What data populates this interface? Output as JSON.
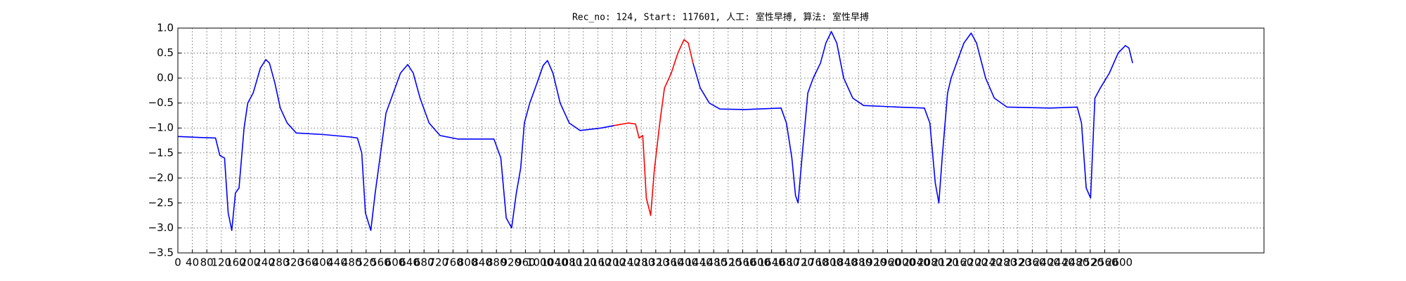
{
  "chart_data": {
    "type": "line",
    "title": "Rec_no: 124, Start: 117601, 人工: 室性早搏, 算法: 室性早搏",
    "xlim": [
      0,
      3000
    ],
    "xticks": [
      0,
      40,
      80,
      120,
      160,
      200,
      240,
      280,
      320,
      360,
      400,
      440,
      480,
      520,
      560,
      600,
      640,
      680,
      720,
      760,
      800,
      840,
      880,
      920,
      960,
      1000,
      1040,
      1080,
      1120,
      1160,
      1200,
      1240,
      1280,
      1320,
      1360,
      1400,
      1440,
      1480,
      1520,
      1560,
      1600,
      1640,
      1680,
      1720,
      1760,
      1800,
      1840,
      1880,
      1920,
      1960,
      2000,
      2040,
      2080,
      2120,
      2160,
      2200,
      2240,
      2280,
      2320,
      2360,
      2400,
      2440,
      2480,
      2520,
      2560,
      2600
    ],
    "ylim": [
      -3.5,
      1.0
    ],
    "yticks": [
      {
        "value": 1.0,
        "label": "1.0"
      },
      {
        "value": 0.5,
        "label": "0.5"
      },
      {
        "value": 0.0,
        "label": "0.0"
      },
      {
        "value": -0.5,
        "label": "−0.5"
      },
      {
        "value": -1.0,
        "label": "−1.0"
      },
      {
        "value": -1.5,
        "label": "−1.5"
      },
      {
        "value": -2.0,
        "label": "−2.0"
      },
      {
        "value": -2.5,
        "label": "−2.5"
      },
      {
        "value": -3.0,
        "label": "−3.0"
      },
      {
        "value": -3.5,
        "label": "−3.5"
      }
    ],
    "grid": true,
    "series": [
      {
        "color": "#0000ff",
        "x": [
          0,
          60,
          104,
          116,
          129,
          139,
          149,
          159,
          169,
          183,
          193,
          208,
          228,
          243,
          253,
          268,
          283,
          302,
          327,
          402,
          476,
          496,
          508,
          518,
          533,
          545,
          560,
          575,
          590,
          615,
          635,
          650,
          669,
          694,
          724,
          773,
          873,
          892,
          907,
          922,
          935,
          947,
          957,
          972,
          992,
          1009,
          1021,
          1036,
          1056,
          1081,
          1111,
          1170,
          1205,
          1300,
          1423,
          1443,
          1468,
          1497,
          1566,
          1666,
          1681,
          1696,
          1706,
          1713,
          1725,
          1740,
          1755,
          1775,
          1790,
          1805,
          1820,
          1839,
          1864,
          1894,
          1988,
          2062,
          2077,
          2092,
          2102,
          2111,
          2126,
          2136,
          2156,
          2171,
          2191,
          2206,
          2231,
          2255,
          2290,
          2409,
          2484,
          2496,
          2509,
          2521,
          2533,
          2548,
          2573,
          2597,
          2617,
          2627,
          2637
        ],
        "values": [
          -1.17,
          -1.19,
          -1.2,
          -1.55,
          -1.6,
          -2.7,
          -3.05,
          -2.3,
          -2.2,
          -1.0,
          -0.5,
          -0.3,
          0.2,
          0.37,
          0.3,
          -0.1,
          -0.6,
          -0.9,
          -1.1,
          -1.13,
          -1.18,
          -1.2,
          -1.5,
          -2.7,
          -3.05,
          -2.3,
          -1.5,
          -0.7,
          -0.4,
          0.1,
          0.27,
          0.1,
          -0.4,
          -0.9,
          -1.15,
          -1.22,
          -1.22,
          -1.6,
          -2.8,
          -3.0,
          -2.3,
          -1.8,
          -0.9,
          -0.5,
          -0.1,
          0.25,
          0.35,
          0.1,
          -0.5,
          -0.9,
          -1.05,
          -1.0,
          -0.95,
          null,
          0.3,
          -0.2,
          -0.5,
          -0.62,
          -0.63,
          -0.6,
          -0.9,
          -1.6,
          -2.35,
          -2.5,
          -1.5,
          -0.3,
          0.0,
          0.3,
          0.7,
          0.93,
          0.7,
          0.0,
          -0.4,
          -0.55,
          -0.58,
          -0.6,
          -0.9,
          -2.1,
          -2.5,
          -1.6,
          -0.3,
          0.0,
          0.4,
          0.7,
          0.9,
          0.7,
          0.0,
          -0.4,
          -0.58,
          -0.6,
          -0.58,
          -0.9,
          -2.2,
          -2.4,
          -0.4,
          -0.2,
          0.1,
          0.5,
          0.65,
          0.6,
          0.3
        ]
      },
      {
        "color": "#ff0000",
        "x": [
          1205,
          1244,
          1264,
          1274,
          1284,
          1294,
          1306,
          1316,
          1331,
          1344,
          1363,
          1381,
          1398,
          1410,
          1423
        ],
        "values": [
          -0.95,
          -0.9,
          -0.92,
          -1.2,
          -1.15,
          -2.4,
          -2.75,
          -1.85,
          -0.9,
          -0.2,
          0.1,
          0.5,
          0.77,
          0.7,
          0.3
        ]
      }
    ]
  }
}
